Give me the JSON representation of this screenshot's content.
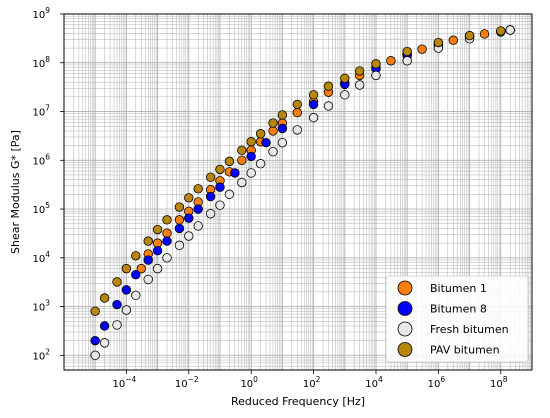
{
  "chart_data": {
    "type": "scatter",
    "title": "",
    "xlabel": "Reduced Frequency [Hz]",
    "ylabel": "Shear Modulus G* [Pa]",
    "xscale": "log",
    "yscale": "log",
    "xlim": [
      1e-06,
      1000000000
    ],
    "ylim": [
      50,
      1000000000
    ],
    "grid": "major and minor",
    "legend_position": "bottom-right",
    "x_ticks": [
      {
        "value": 0.0001,
        "base": "10",
        "exp": "−4"
      },
      {
        "value": 0.01,
        "base": "10",
        "exp": "−2"
      },
      {
        "value": 1,
        "base": "10",
        "exp": "0"
      },
      {
        "value": 100,
        "base": "10",
        "exp": "2"
      },
      {
        "value": 10000,
        "base": "10",
        "exp": "4"
      },
      {
        "value": 1000000,
        "base": "10",
        "exp": "6"
      },
      {
        "value": 100000000,
        "base": "10",
        "exp": "8"
      }
    ],
    "y_ticks": [
      {
        "value": 100,
        "base": "10",
        "exp": "2"
      },
      {
        "value": 1000,
        "base": "10",
        "exp": "3"
      },
      {
        "value": 10000,
        "base": "10",
        "exp": "4"
      },
      {
        "value": 100000,
        "base": "10",
        "exp": "5"
      },
      {
        "value": 1000000,
        "base": "10",
        "exp": "6"
      },
      {
        "value": 10000000,
        "base": "10",
        "exp": "7"
      },
      {
        "value": 100000000,
        "base": "10",
        "exp": "8"
      },
      {
        "value": 1000000000,
        "base": "10",
        "exp": "9"
      }
    ],
    "series": [
      {
        "name": "Bitumen 1",
        "color": "#ff7f0e",
        "x": [
          0.0003,
          0.0005,
          0.001,
          0.002,
          0.005,
          0.01,
          0.02,
          0.05,
          0.1,
          0.2,
          0.5,
          1,
          2,
          5,
          10,
          30,
          100,
          300,
          1000,
          3000,
          10000,
          30000,
          100000,
          300000,
          1000000,
          3000000,
          10000000,
          30000000,
          100000000,
          200000000
        ],
        "y": [
          6000,
          12000,
          20000,
          32000,
          60000,
          90000,
          140000,
          250000,
          380000,
          580000,
          1000000,
          1600000,
          2400000,
          4000000,
          5800000,
          9500000,
          16000000,
          25000000,
          38000000,
          55000000,
          80000000,
          110000000,
          150000000,
          190000000,
          240000000,
          290000000,
          340000000,
          390000000,
          440000000,
          470000000
        ]
      },
      {
        "name": "Bitumen 8",
        "color": "#0000ff",
        "x": [
          1e-05,
          2e-05,
          5e-05,
          0.0001,
          0.0002,
          0.0005,
          0.001,
          0.002,
          0.005,
          0.01,
          0.02,
          0.05,
          0.1,
          0.3,
          1,
          3,
          10,
          100,
          1000,
          10000,
          100000,
          1000000,
          10000000,
          100000000,
          200000000
        ],
        "y": [
          200,
          400,
          1100,
          2200,
          4500,
          9000,
          14000,
          22000,
          40000,
          65000,
          100000,
          180000,
          280000,
          550000,
          1200000,
          2300000,
          4500000,
          14000000,
          36000000,
          75000000,
          140000000,
          230000000,
          340000000,
          440000000,
          470000000
        ]
      },
      {
        "name": "Fresh bitumen",
        "color": "#e8e8e8",
        "x": [
          1e-05,
          2e-05,
          5e-05,
          0.0001,
          0.0002,
          0.0005,
          0.001,
          0.002,
          0.005,
          0.01,
          0.02,
          0.05,
          0.1,
          0.2,
          0.5,
          1,
          2,
          5,
          10,
          30,
          100,
          300,
          1000,
          3000,
          10000,
          100000,
          1000000,
          10000000,
          100000000,
          200000000
        ],
        "y": [
          100,
          180,
          420,
          850,
          1700,
          3600,
          6000,
          10000,
          18000,
          28000,
          45000,
          80000,
          120000,
          200000,
          350000,
          550000,
          850000,
          1500000,
          2300000,
          4200000,
          7500000,
          13000000,
          22000000,
          35000000,
          55000000,
          110000000,
          200000000,
          310000000,
          430000000,
          470000000
        ]
      },
      {
        "name": "PAV bitumen",
        "color": "#b8860b",
        "x": [
          1e-05,
          2e-05,
          5e-05,
          0.0001,
          0.0002,
          0.0005,
          0.001,
          0.002,
          0.005,
          0.01,
          0.02,
          0.05,
          0.1,
          0.2,
          0.5,
          1,
          2,
          5,
          10,
          30,
          100,
          300,
          1000,
          3000,
          10000,
          100000,
          1000000,
          10000000,
          100000000
        ],
        "y": [
          800,
          1500,
          3200,
          6000,
          11000,
          22000,
          38000,
          60000,
          110000,
          170000,
          260000,
          450000,
          650000,
          950000,
          1600000,
          2400000,
          3500000,
          5800000,
          8500000,
          14000000,
          22000000,
          33000000,
          48000000,
          68000000,
          95000000,
          170000000,
          260000000,
          360000000,
          450000000
        ]
      }
    ]
  }
}
